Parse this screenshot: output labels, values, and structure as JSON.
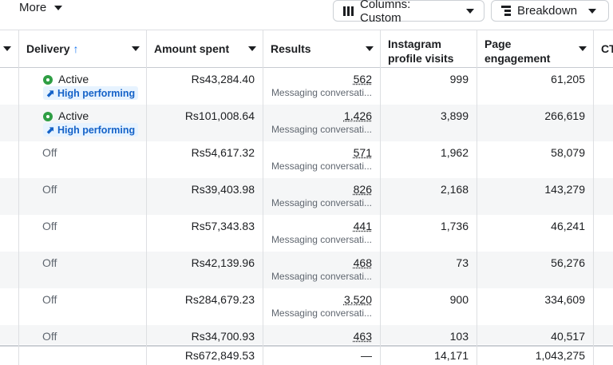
{
  "toolbar": {
    "more_label": "More",
    "columns_label": "Columns: Custom",
    "breakdown_label": "Breakdown",
    "columns_icon": "columns-icon",
    "breakdown_icon": "breakdown-icon"
  },
  "columns": {
    "delivery": "Delivery",
    "delivery_sort": "↑",
    "amount_spent": "Amount spent",
    "results": "Results",
    "instagram": "Instagram profile visits",
    "page_engagement": "Page engagement",
    "ctr": "CT"
  },
  "rows": [
    {
      "delivery": "Active",
      "badge": "High performing",
      "amount": "Rs43,284.40",
      "results": "562",
      "results_sub": "Messaging conversati...",
      "instagram": "999",
      "engagement": "61,205"
    },
    {
      "delivery": "Active",
      "badge": "High performing",
      "amount": "Rs101,008.64",
      "results": "1,426",
      "results_sub": "Messaging conversati...",
      "instagram": "3,899",
      "engagement": "266,619"
    },
    {
      "delivery": "Off",
      "badge": "",
      "amount": "Rs54,617.32",
      "results": "571",
      "results_sub": "Messaging conversati...",
      "instagram": "1,962",
      "engagement": "58,079"
    },
    {
      "delivery": "Off",
      "badge": "",
      "amount": "Rs39,403.98",
      "results": "826",
      "results_sub": "Messaging conversati...",
      "instagram": "2,168",
      "engagement": "143,279"
    },
    {
      "delivery": "Off",
      "badge": "",
      "amount": "Rs57,343.83",
      "results": "441",
      "results_sub": "Messaging conversati...",
      "instagram": "1,736",
      "engagement": "46,241"
    },
    {
      "delivery": "Off",
      "badge": "",
      "amount": "Rs42,139.96",
      "results": "468",
      "results_sub": "Messaging conversati...",
      "instagram": "73",
      "engagement": "56,276"
    },
    {
      "delivery": "Off",
      "badge": "",
      "amount": "Rs284,679.23",
      "results": "3,520",
      "results_sub": "Messaging conversati...",
      "instagram": "900",
      "engagement": "334,609"
    },
    {
      "delivery": "Off",
      "badge": "",
      "amount": "Rs34,700.93",
      "results": "463",
      "results_sub": "",
      "instagram": "103",
      "engagement": "40,517"
    }
  ],
  "totals": {
    "amount": "Rs672,849.53",
    "results": "—",
    "instagram": "14,171",
    "engagement": "1,043,275"
  },
  "colors": {
    "active_dot": "#2f9e44",
    "badge_bg": "#e7f3ff",
    "badge_text": "#1462c8",
    "sort_arrow": "#1877f2"
  }
}
